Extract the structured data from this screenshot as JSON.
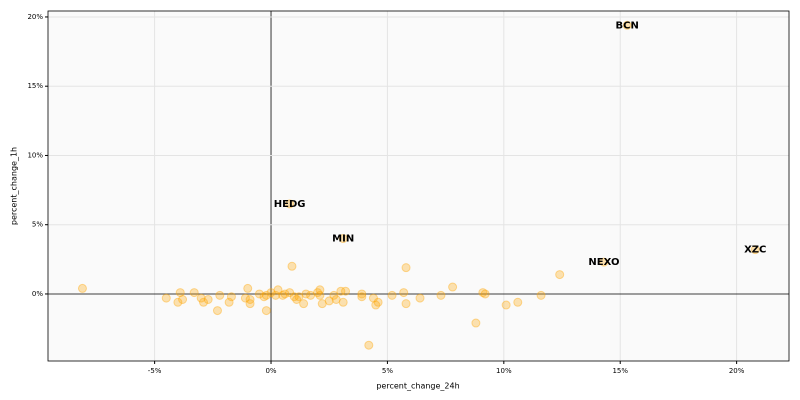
{
  "chart_data": {
    "type": "scatter",
    "xlabel": "percent_change_24h",
    "ylabel": "percent_change_1h",
    "xlim": [
      -9.58,
      22.25
    ],
    "ylim": [
      -4.84,
      20.43
    ],
    "xticks": [
      {
        "value": -5,
        "label": "-5%"
      },
      {
        "value": 0,
        "label": "0%"
      },
      {
        "value": 5,
        "label": "5%"
      },
      {
        "value": 10,
        "label": "10%"
      },
      {
        "value": 15,
        "label": "15%"
      },
      {
        "value": 20,
        "label": "20%"
      }
    ],
    "yticks": [
      {
        "value": 0,
        "label": "0%"
      },
      {
        "value": 5,
        "label": "5%"
      },
      {
        "value": 10,
        "label": "10%"
      },
      {
        "value": 15,
        "label": "15%"
      },
      {
        "value": 20,
        "label": "20%"
      }
    ],
    "grid": true,
    "series": [
      {
        "color": "#ffa500",
        "x": [
          -8.1,
          -4.5,
          -3.9,
          -4.0,
          -3.8,
          -3.3,
          -3.0,
          -2.9,
          -2.7,
          -2.3,
          -2.2,
          -1.8,
          -1.7,
          -1.1,
          -1.0,
          -0.9,
          -0.9,
          -0.5,
          -0.3,
          -0.2,
          -0.2,
          0.0,
          0.2,
          0.3,
          0.5,
          0.6,
          0.8,
          0.8,
          0.9,
          1.0,
          1.1,
          1.2,
          1.4,
          1.5,
          1.7,
          2.0,
          2.1,
          2.1,
          2.2,
          2.5,
          2.7,
          2.8,
          3.0,
          3.1,
          3.1,
          3.2,
          3.9,
          3.9,
          4.2,
          4.4,
          4.5,
          4.6,
          5.2,
          5.7,
          5.8,
          5.8,
          6.4,
          7.3,
          7.8,
          8.8,
          9.1,
          9.2,
          10.1,
          10.6,
          11.6,
          12.4,
          14.3,
          15.3,
          20.8
        ],
        "values": [
          0.4,
          -0.3,
          0.1,
          -0.6,
          -0.4,
          0.1,
          -0.3,
          -0.6,
          -0.4,
          -1.2,
          -0.1,
          -0.6,
          -0.2,
          -0.3,
          0.4,
          -0.4,
          -0.7,
          0.0,
          -0.2,
          -1.2,
          -0.1,
          0.1,
          -0.1,
          0.3,
          -0.1,
          0.0,
          6.5,
          0.1,
          2.0,
          -0.2,
          -0.4,
          -0.2,
          -0.7,
          0.0,
          -0.1,
          0.1,
          0.3,
          -0.1,
          -0.7,
          -0.5,
          -0.1,
          -0.4,
          0.2,
          4.0,
          -0.6,
          0.2,
          -0.2,
          0.0,
          -3.7,
          -0.3,
          -0.8,
          -0.6,
          -0.1,
          0.1,
          1.9,
          -0.7,
          -0.3,
          -0.1,
          0.5,
          -2.1,
          0.1,
          0.0,
          -0.8,
          -0.6,
          -0.1,
          1.4,
          2.3,
          19.4,
          3.2
        ],
        "point_labels": [
          null,
          null,
          null,
          null,
          null,
          null,
          null,
          null,
          null,
          null,
          null,
          null,
          null,
          null,
          null,
          null,
          null,
          null,
          null,
          null,
          null,
          null,
          null,
          null,
          null,
          null,
          "HEDG",
          null,
          null,
          null,
          null,
          null,
          null,
          null,
          null,
          null,
          null,
          null,
          null,
          null,
          null,
          null,
          null,
          "MIN",
          null,
          null,
          null,
          null,
          null,
          null,
          null,
          null,
          null,
          null,
          null,
          null,
          null,
          null,
          null,
          null,
          null,
          null,
          null,
          null,
          null,
          null,
          "NEXO",
          "BCN",
          "XZC"
        ]
      }
    ]
  }
}
